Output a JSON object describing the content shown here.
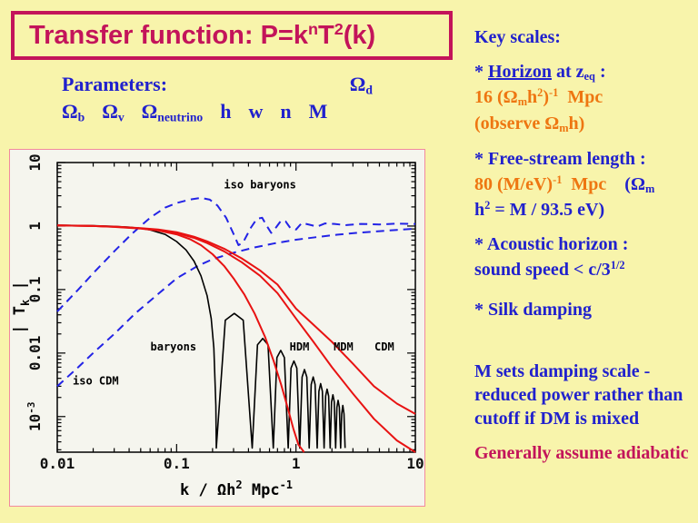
{
  "colors": {
    "bg": "#f8f4ab",
    "crimson": "#c3145a",
    "blue": "#2121cd",
    "orange": "#ee7611",
    "panel": "#f5f5ee",
    "panel_border": "#f2899e",
    "red_curve": "#e81212",
    "blue_curve": "#2323e6",
    "black_curve": "#000000"
  },
  "title": {
    "runs": [
      {
        "t": "Transfer function: P=k",
        "c": "crimson"
      },
      {
        "t": "n",
        "c": "crimson",
        "sup": true
      },
      {
        "t": "T",
        "c": "crimson"
      },
      {
        "t": "2",
        "c": "crimson",
        "sup": true
      },
      {
        "t": "(k)",
        "c": "crimson"
      }
    ]
  },
  "parameters": {
    "line1_left": [
      {
        "t": "Parameters:",
        "c": "blue"
      }
    ],
    "line1_right": [
      {
        "t": "Ω",
        "c": "blue"
      },
      {
        "t": "d",
        "c": "blue",
        "sub": true
      }
    ],
    "line2": [
      {
        "t": "Ω",
        "c": "blue"
      },
      {
        "t": "b",
        "c": "blue",
        "sub": true
      },
      {
        "t": "  Ω",
        "c": "blue"
      },
      {
        "t": "v",
        "c": "blue",
        "sub": true
      },
      {
        "t": "  Ω",
        "c": "blue"
      },
      {
        "t": "neutrino",
        "c": "blue",
        "sub": true
      },
      {
        "t": "  h  w  n  M",
        "c": "blue"
      }
    ]
  },
  "key_scales": {
    "header": [
      {
        "t": "Key scales:",
        "c": "blue"
      }
    ],
    "horizon_title": [
      {
        "t": "* ",
        "c": "blue"
      },
      {
        "t": "Horizon",
        "c": "blue",
        "u": true
      },
      {
        "t": " at z",
        "c": "blue"
      },
      {
        "t": "eq",
        "c": "blue",
        "sub": true
      },
      {
        "t": " :",
        "c": "blue"
      }
    ],
    "horizon_val": [
      {
        "t": "16 (Ω",
        "c": "orange"
      },
      {
        "t": "m",
        "c": "orange",
        "sub": true
      },
      {
        "t": "h",
        "c": "orange"
      },
      {
        "t": "2",
        "c": "orange",
        "sup": true
      },
      {
        "t": ")",
        "c": "orange"
      },
      {
        "t": "-1",
        "c": "orange",
        "sup": true
      },
      {
        "t": "  Mpc",
        "c": "orange"
      }
    ],
    "horizon_obs": [
      {
        "t": "(observe Ω",
        "c": "orange"
      },
      {
        "t": "m",
        "c": "orange",
        "sub": true
      },
      {
        "t": "h)",
        "c": "orange"
      }
    ],
    "freestream_title": [
      {
        "t": "* Free-stream length :",
        "c": "blue"
      }
    ],
    "freestream_val": [
      {
        "t": "80 (M/eV)",
        "c": "orange"
      },
      {
        "t": "-1",
        "c": "orange",
        "sup": true
      },
      {
        "t": "  Mpc",
        "c": "orange"
      },
      {
        "t": "    (Ω",
        "c": "blue"
      },
      {
        "t": "m",
        "c": "blue",
        "sub": true
      }
    ],
    "freestream_val2": [
      {
        "t": "h",
        "c": "blue"
      },
      {
        "t": "2",
        "c": "blue",
        "sup": true
      },
      {
        "t": " = M / 93.5 eV)",
        "c": "blue"
      }
    ],
    "acoustic_title": [
      {
        "t": "* Acoustic horizon :",
        "c": "blue"
      }
    ],
    "acoustic_val": [
      {
        "t": "sound speed < c/3",
        "c": "blue"
      },
      {
        "t": "1/2",
        "c": "blue",
        "sup": true
      }
    ],
    "silk": [
      {
        "t": "* Silk damping",
        "c": "blue"
      }
    ],
    "note": [
      {
        "t": "M sets damping scale - reduced power rather than cutoff if DM is mixed",
        "c": "blue"
      }
    ],
    "adiabatic": [
      {
        "t": "Generally assume adiabatic",
        "c": "crimson"
      }
    ]
  },
  "chart_data": {
    "type": "line",
    "title": "",
    "grid": false,
    "legend": "labels drawn beside curves",
    "x_axis": {
      "scale": "log",
      "min": 0.01,
      "max": 10,
      "label_segments": [
        {
          "t": "k / Ωh"
        },
        {
          "t": "2",
          "sup": true
        },
        {
          "t": " Mpc"
        },
        {
          "t": "-1",
          "sup": true
        }
      ],
      "ticks": [
        {
          "v": 0.01,
          "l": "0.01"
        },
        {
          "v": 0.1,
          "l": "0.1"
        },
        {
          "v": 1,
          "l": "1"
        },
        {
          "v": 10,
          "l": "10"
        }
      ]
    },
    "y_axis": {
      "scale": "log",
      "min": 0.000275,
      "max": 10,
      "label_segments": [
        {
          "t": "| T"
        },
        {
          "t": "k",
          "sub": true
        },
        {
          "t": " |"
        }
      ],
      "ticks": [
        {
          "v": 10,
          "l": "10"
        },
        {
          "v": 1,
          "l": "1"
        },
        {
          "v": 0.1,
          "l": "0.1"
        },
        {
          "v": 0.01,
          "l": "0.01"
        },
        {
          "v": 0.001,
          "l": "10^-3"
        }
      ]
    },
    "series": [
      {
        "name": "iso baryons",
        "color": "#2323e6",
        "dash": "9,6",
        "width": 2,
        "points": [
          [
            0.01,
            0.045
          ],
          [
            0.015,
            0.1
          ],
          [
            0.02,
            0.18
          ],
          [
            0.03,
            0.4
          ],
          [
            0.042,
            0.75
          ],
          [
            0.06,
            1.35
          ],
          [
            0.08,
            1.95
          ],
          [
            0.1,
            2.3
          ],
          [
            0.13,
            2.62
          ],
          [
            0.16,
            2.78
          ],
          [
            0.19,
            2.6
          ],
          [
            0.22,
            2.1
          ],
          [
            0.26,
            1.35
          ],
          [
            0.3,
            0.75
          ],
          [
            0.33,
            0.5
          ],
          [
            0.36,
            0.55
          ],
          [
            0.42,
            0.95
          ],
          [
            0.47,
            1.3
          ],
          [
            0.52,
            1.35
          ],
          [
            0.57,
            1.0
          ],
          [
            0.62,
            0.78
          ],
          [
            0.68,
            0.95
          ],
          [
            0.75,
            1.22
          ],
          [
            0.82,
            1.18
          ],
          [
            0.9,
            0.92
          ],
          [
            1.0,
            0.88
          ],
          [
            1.12,
            1.12
          ],
          [
            1.3,
            1.05
          ],
          [
            1.5,
            0.98
          ],
          [
            1.75,
            1.1
          ],
          [
            2.1,
            1.08
          ],
          [
            2.6,
            1.03
          ],
          [
            3.5,
            1.08
          ],
          [
            5,
            1.06
          ],
          [
            7,
            1.09
          ],
          [
            10,
            1.08
          ]
        ]
      },
      {
        "name": "iso CDM",
        "color": "#2323e6",
        "dash": "9,6",
        "width": 2,
        "points": [
          [
            0.01,
            0.003
          ],
          [
            0.015,
            0.006
          ],
          [
            0.02,
            0.01
          ],
          [
            0.03,
            0.02
          ],
          [
            0.045,
            0.042
          ],
          [
            0.07,
            0.085
          ],
          [
            0.1,
            0.15
          ],
          [
            0.15,
            0.235
          ],
          [
            0.2,
            0.3
          ],
          [
            0.3,
            0.38
          ],
          [
            0.45,
            0.46
          ],
          [
            0.65,
            0.53
          ],
          [
            1.0,
            0.61
          ],
          [
            1.5,
            0.67
          ],
          [
            2.2,
            0.73
          ],
          [
            3.2,
            0.78
          ],
          [
            5,
            0.83
          ],
          [
            7,
            0.87
          ],
          [
            10,
            0.91
          ]
        ]
      },
      {
        "name": "baryons",
        "color": "#000000",
        "width": 1.6,
        "points": [
          [
            0.01,
            1.03
          ],
          [
            0.015,
            1.02
          ],
          [
            0.02,
            1.01
          ],
          [
            0.03,
            0.99
          ],
          [
            0.04,
            0.96
          ],
          [
            0.05,
            0.92
          ],
          [
            0.06,
            0.87
          ],
          [
            0.08,
            0.74
          ],
          [
            0.1,
            0.57
          ],
          [
            0.12,
            0.42
          ],
          [
            0.14,
            0.28
          ],
          [
            0.16,
            0.165
          ],
          [
            0.18,
            0.08
          ],
          [
            0.195,
            0.035
          ],
          [
            0.205,
            0.012
          ],
          [
            0.213,
            0.0015
          ],
          [
            0.215,
            0.00032
          ],
          [
            0.256,
            0.033
          ],
          [
            0.304,
            0.042
          ],
          [
            0.361,
            0.033
          ],
          [
            0.43,
            0.00032
          ],
          [
            0.476,
            0.0135
          ],
          [
            0.527,
            0.017
          ],
          [
            0.583,
            0.0135
          ],
          [
            0.645,
            0.00032
          ],
          [
            0.693,
            0.0085
          ],
          [
            0.745,
            0.011
          ],
          [
            0.8,
            0.0085
          ],
          [
            0.86,
            0.00032
          ],
          [
            0.909,
            0.0058
          ],
          [
            0.961,
            0.0075
          ],
          [
            1.016,
            0.0058
          ],
          [
            1.075,
            0.00032
          ],
          [
            1.125,
            0.0042
          ],
          [
            1.178,
            0.0055
          ],
          [
            1.232,
            0.0042
          ],
          [
            1.29,
            0.00032
          ],
          [
            1.34,
            0.0032
          ],
          [
            1.393,
            0.0042
          ],
          [
            1.447,
            0.0032
          ],
          [
            1.505,
            0.00032
          ],
          [
            1.556,
            0.0025
          ],
          [
            1.609,
            0.0033
          ],
          [
            1.663,
            0.0025
          ],
          [
            1.72,
            0.00032
          ],
          [
            1.771,
            0.0021
          ],
          [
            1.824,
            0.0027
          ],
          [
            1.878,
            0.0021
          ],
          [
            1.935,
            0.00032
          ],
          [
            1.986,
            0.0017
          ],
          [
            2.04,
            0.0022
          ],
          [
            2.094,
            0.0017
          ],
          [
            2.15,
            0.00032
          ],
          [
            2.202,
            0.0014
          ],
          [
            2.255,
            0.0018
          ],
          [
            2.309,
            0.0014
          ],
          [
            2.365,
            0.00032
          ],
          [
            2.417,
            0.0011
          ],
          [
            2.47,
            0.0015
          ],
          [
            2.524,
            0.0011
          ],
          [
            2.58,
            0.00032
          ]
        ]
      },
      {
        "name": "HDM",
        "color": "#e81212",
        "width": 2,
        "points": [
          [
            0.01,
            1.02
          ],
          [
            0.02,
            1.0
          ],
          [
            0.03,
            0.97
          ],
          [
            0.05,
            0.91
          ],
          [
            0.07,
            0.85
          ],
          [
            0.1,
            0.74
          ],
          [
            0.13,
            0.62
          ],
          [
            0.16,
            0.5
          ],
          [
            0.2,
            0.36
          ],
          [
            0.25,
            0.235
          ],
          [
            0.3,
            0.15
          ],
          [
            0.37,
            0.083
          ],
          [
            0.45,
            0.042
          ],
          [
            0.55,
            0.018
          ],
          [
            0.65,
            0.0075
          ],
          [
            0.75,
            0.0032
          ],
          [
            0.85,
            0.0014
          ],
          [
            0.95,
            0.00065
          ],
          [
            1.05,
            0.00036
          ],
          [
            1.17,
            0.000275
          ]
        ]
      },
      {
        "name": "MDM",
        "color": "#e81212",
        "width": 2,
        "points": [
          [
            0.01,
            1.02
          ],
          [
            0.02,
            1.0
          ],
          [
            0.03,
            0.975
          ],
          [
            0.05,
            0.92
          ],
          [
            0.07,
            0.87
          ],
          [
            0.1,
            0.78
          ],
          [
            0.14,
            0.65
          ],
          [
            0.18,
            0.54
          ],
          [
            0.25,
            0.4
          ],
          [
            0.35,
            0.27
          ],
          [
            0.5,
            0.165
          ],
          [
            0.7,
            0.088
          ],
          [
            1.0,
            0.035
          ],
          [
            1.4,
            0.015
          ],
          [
            2.0,
            0.006
          ],
          [
            3.0,
            0.0023
          ],
          [
            4.5,
            0.00092
          ],
          [
            7,
            0.00042
          ],
          [
            10,
            0.000275
          ]
        ]
      },
      {
        "name": "CDM",
        "color": "#e81212",
        "width": 2,
        "points": [
          [
            0.01,
            1.02
          ],
          [
            0.02,
            1.0
          ],
          [
            0.03,
            0.98
          ],
          [
            0.05,
            0.93
          ],
          [
            0.07,
            0.885
          ],
          [
            0.1,
            0.8
          ],
          [
            0.14,
            0.68
          ],
          [
            0.18,
            0.575
          ],
          [
            0.25,
            0.44
          ],
          [
            0.35,
            0.31
          ],
          [
            0.5,
            0.2
          ],
          [
            0.7,
            0.12
          ],
          [
            1.0,
            0.05
          ],
          [
            1.4,
            0.028
          ],
          [
            2.0,
            0.015
          ],
          [
            3.0,
            0.0068
          ],
          [
            4.5,
            0.003
          ],
          [
            7,
            0.0016
          ],
          [
            10,
            0.0011
          ]
        ]
      }
    ],
    "labels": [
      {
        "text": "iso baryons",
        "x": 0.5,
        "y": 3.9
      },
      {
        "text": "baryons",
        "x": 0.094,
        "y": 0.011
      },
      {
        "text": "HDM",
        "x": 1.07,
        "y": 0.011
      },
      {
        "text": "MDM",
        "x": 2.5,
        "y": 0.011
      },
      {
        "text": "CDM",
        "x": 5.5,
        "y": 0.011
      },
      {
        "text": "iso CDM",
        "x": 0.021,
        "y": 0.0032
      }
    ]
  }
}
